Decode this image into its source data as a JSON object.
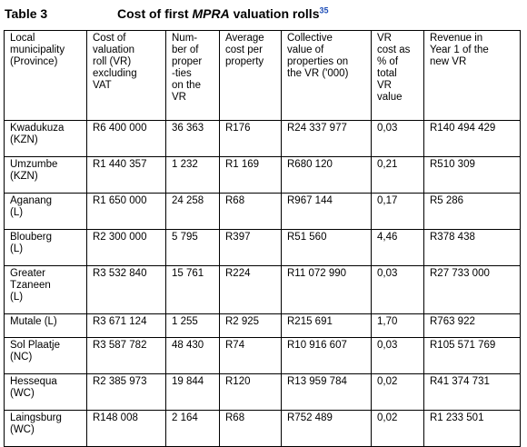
{
  "caption": {
    "label": "Table 3",
    "title_prefix": "Cost of first ",
    "title_em": "MPRA",
    "title_suffix": " valuation rolls",
    "footnote": "35"
  },
  "table": {
    "headers": [
      "Local\nmunicipality\n(Province)",
      "Cost of\nvaluation\nroll (VR)\nexcluding\nVAT",
      "Num-\nber of\nproper\n-ties\non the\nVR",
      "Average\ncost per\nproperty",
      "Collective\nvalue of\nproperties on\nthe VR ('000)",
      "VR\ncost as\n% of\ntotal\nVR\nvalue",
      "Revenue in\nYear 1 of the\nnew VR"
    ],
    "rows": [
      [
        "Kwadukuza\n(KZN)",
        "R6 400 000",
        "36 363",
        "R176",
        "R24 337 977",
        "0,03",
        "R140 494 429"
      ],
      [
        "Umzumbe\n(KZN)",
        "R1 440 357",
        "1 232",
        "R1 169",
        "R680 120",
        "0,21",
        "R510 309"
      ],
      [
        "Aganang\n(L)",
        "R1 650 000",
        "24 258",
        "R68",
        "R967 144",
        "0,17",
        "R5 286"
      ],
      [
        "Blouberg\n(L)",
        "R2 300 000",
        "5 795",
        "R397",
        "R51 560",
        "4,46",
        "R378 438"
      ],
      [
        "Greater\nTzaneen\n(L)",
        "R3 532 840",
        "15 761",
        "R224",
        "R11 072 990",
        "0,03",
        "R27 733 000"
      ],
      [
        "Mutale (L)",
        "R3 671 124",
        "1 255",
        "R2 925",
        "R215 691",
        "1,70",
        "R763 922"
      ],
      [
        "Sol Plaatje\n(NC)",
        "R3 587 782",
        "48 430",
        "R74",
        "R10 916 607",
        "0,03",
        "R105 571 769"
      ],
      [
        "Hessequa\n(WC)",
        "R2 385 973",
        "19 844",
        "R120",
        "R13 959 784",
        "0,02",
        "R41 374 731"
      ],
      [
        "Laingsburg\n(WC)",
        "R148 008",
        "2 164",
        "R68",
        "R752 489",
        "0,02",
        "R1 233 501"
      ]
    ]
  }
}
